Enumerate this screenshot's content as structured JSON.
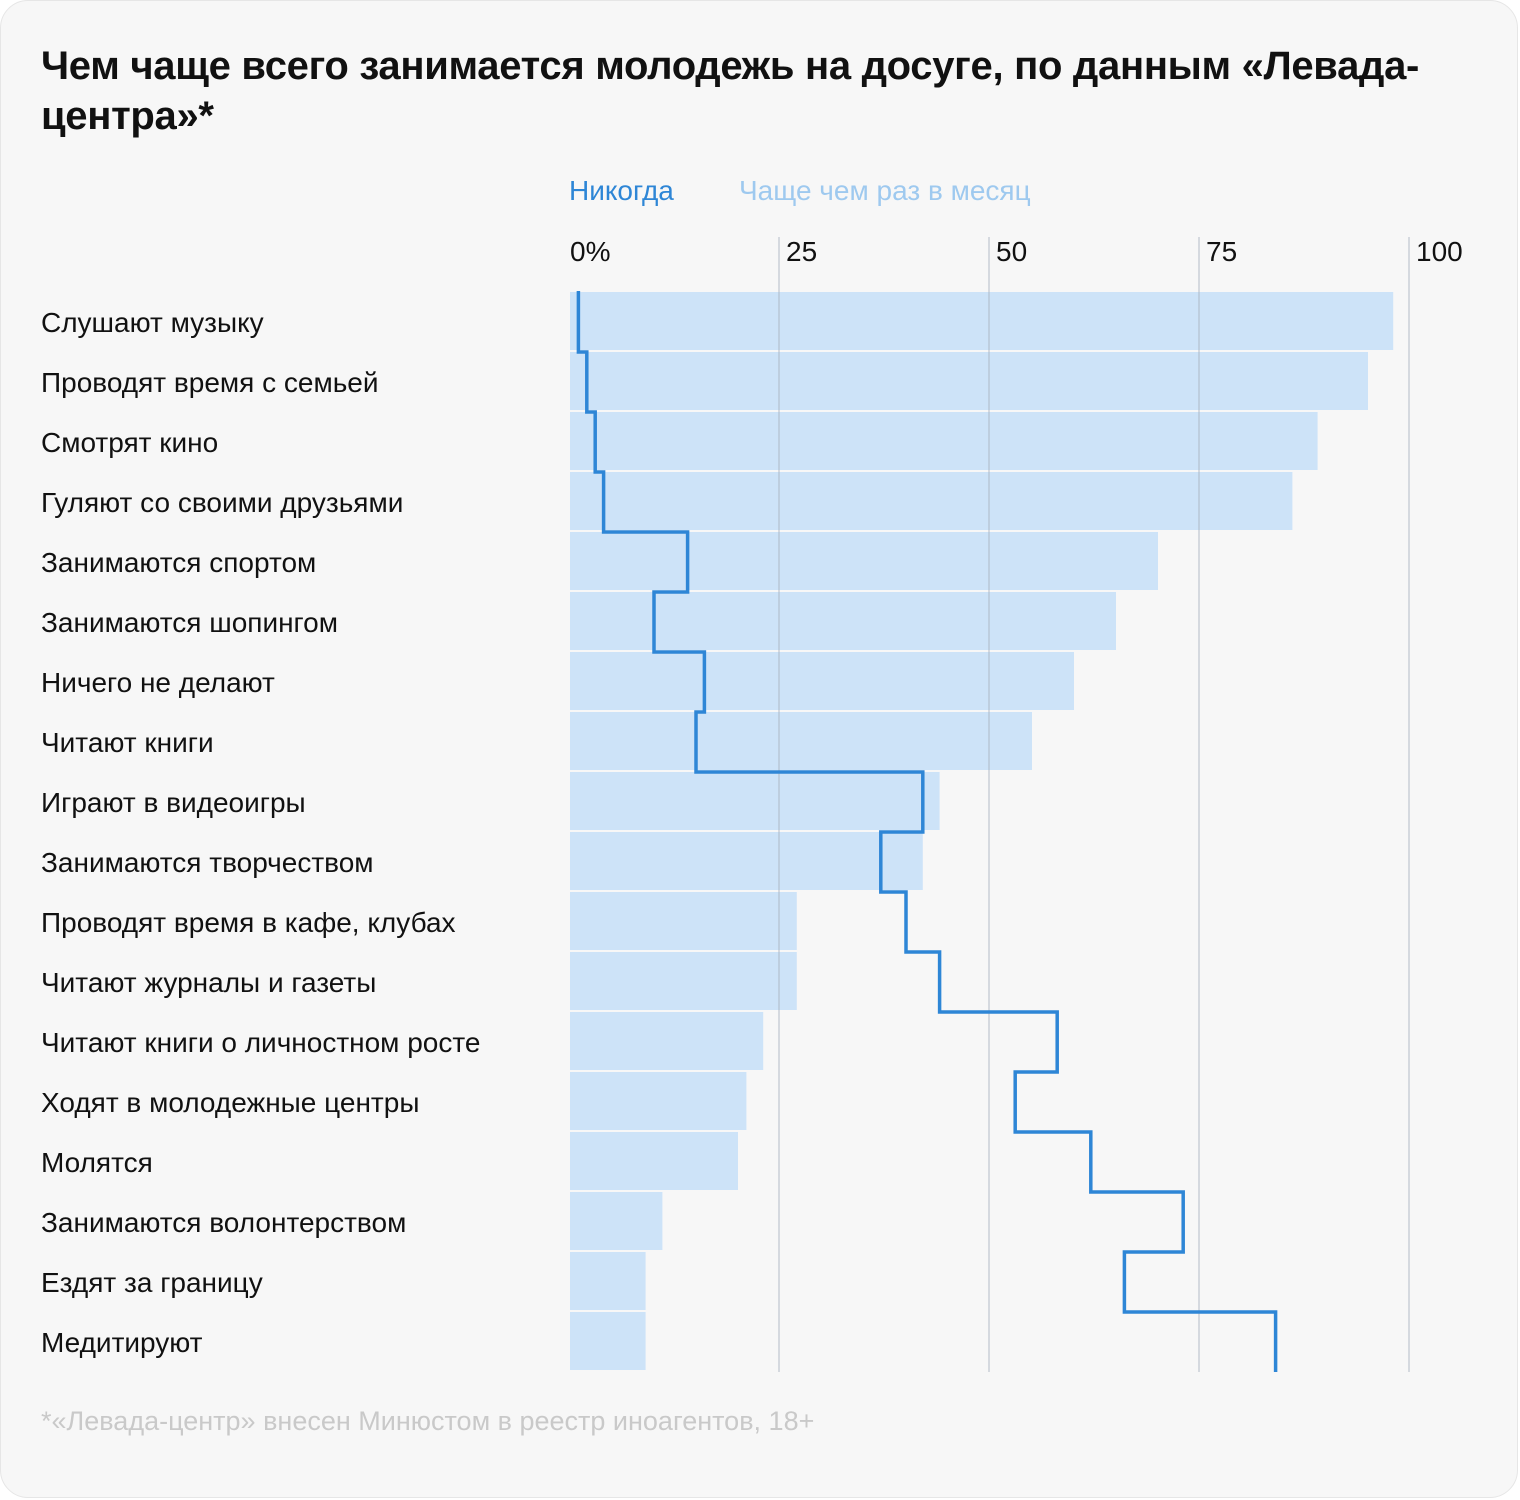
{
  "title": "Чем чаще всего занимается молодежь на досуге, по данным «Левада-центра»*",
  "footnote": "*«Левада-центр» внесен Минюстом в реестр иноагентов, 18+",
  "colors": {
    "bar_fill": "#cde3f8",
    "never_line": "#2e86d6",
    "legend_monthly": "#9ec9ef",
    "gridline": "#d9dde2",
    "text": "#111111",
    "footnote": "#c9c9c9"
  },
  "chart_data": {
    "type": "bar",
    "orientation": "horizontal",
    "xlim": [
      0,
      100
    ],
    "ticks": [
      0,
      25,
      50,
      75,
      100
    ],
    "tick_labels": [
      "0%",
      "25",
      "50",
      "75",
      "100"
    ],
    "grid": true,
    "legend_position": "top",
    "categories": [
      "Слушают музыку",
      "Проводят время с семьей",
      "Смотрят кино",
      "Гуляют со своими друзьями",
      "Занимаются спортом",
      "Занимаются шопингом",
      "Ничего не делают",
      "Читают книги",
      "Играют в видеоигры",
      "Занимаются творчеством",
      "Проводят время в кафе, клубах",
      "Читают журналы и газеты",
      "Читают книги о личностном росте",
      "Ходят в молодежные центры",
      "Молятся",
      "Занимаются волонтерством",
      "Ездят за границу",
      "Медитируют"
    ],
    "series": [
      {
        "name": "Никогда",
        "style": "step-line",
        "values": [
          1,
          2,
          3,
          4,
          14,
          10,
          16,
          15,
          42,
          37,
          40,
          44,
          58,
          53,
          62,
          73,
          66,
          84
        ]
      },
      {
        "name": "Чаще чем раз в месяц",
        "style": "bar",
        "values": [
          98,
          95,
          89,
          86,
          70,
          65,
          60,
          55,
          44,
          42,
          27,
          27,
          23,
          21,
          20,
          11,
          9,
          9
        ]
      }
    ]
  }
}
